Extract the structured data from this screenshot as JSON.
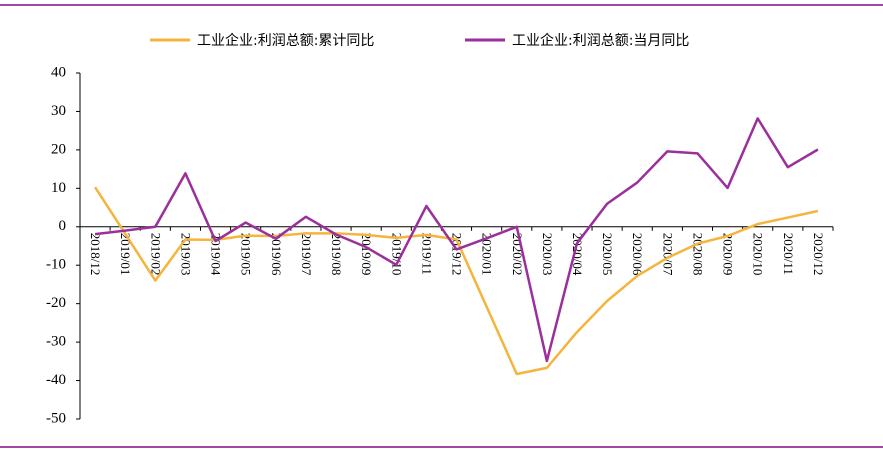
{
  "chart_data": {
    "type": "line",
    "categories": [
      "2018/12",
      "2019/01",
      "2019/02",
      "2019/03",
      "2019/04",
      "2019/05",
      "2019/06",
      "2019/07",
      "2019/08",
      "2019/09",
      "2019/10",
      "2019/11",
      "2019/12",
      "2020/01",
      "2020/02",
      "2020/03",
      "2020/04",
      "2020/05",
      "2020/06",
      "2020/07",
      "2020/08",
      "2020/09",
      "2020/10",
      "2020/11",
      "2020/12"
    ],
    "series": [
      {
        "name": "工业企业:利润总额:累计同比",
        "color": "#f5b43c",
        "values": [
          10.3,
          -1.8,
          -14.0,
          -3.3,
          -3.4,
          -2.3,
          -2.4,
          -1.7,
          -1.7,
          -2.1,
          -2.9,
          -2.1,
          -3.3,
          -20.8,
          -38.3,
          -36.7,
          -27.4,
          -19.3,
          -12.8,
          -8.1,
          -4.4,
          -2.4,
          0.7,
          2.4,
          4.1
        ]
      },
      {
        "name": "工业企业:利润总额:当月同比",
        "color": "#9b2f9b",
        "values": [
          -1.9,
          -1.0,
          0,
          13.9,
          -3.7,
          1.1,
          -3.1,
          2.6,
          -2.0,
          -5.3,
          -9.9,
          5.4,
          -5.9,
          -3.0,
          0,
          -34.9,
          -4.3,
          6.0,
          11.5,
          19.6,
          19.1,
          10.1,
          28.2,
          15.5,
          20.1
        ]
      }
    ],
    "ylim": [
      -50,
      40
    ],
    "yticks": [
      -50,
      -40,
      -30,
      -20,
      -10,
      0,
      10,
      20,
      30,
      40
    ]
  }
}
